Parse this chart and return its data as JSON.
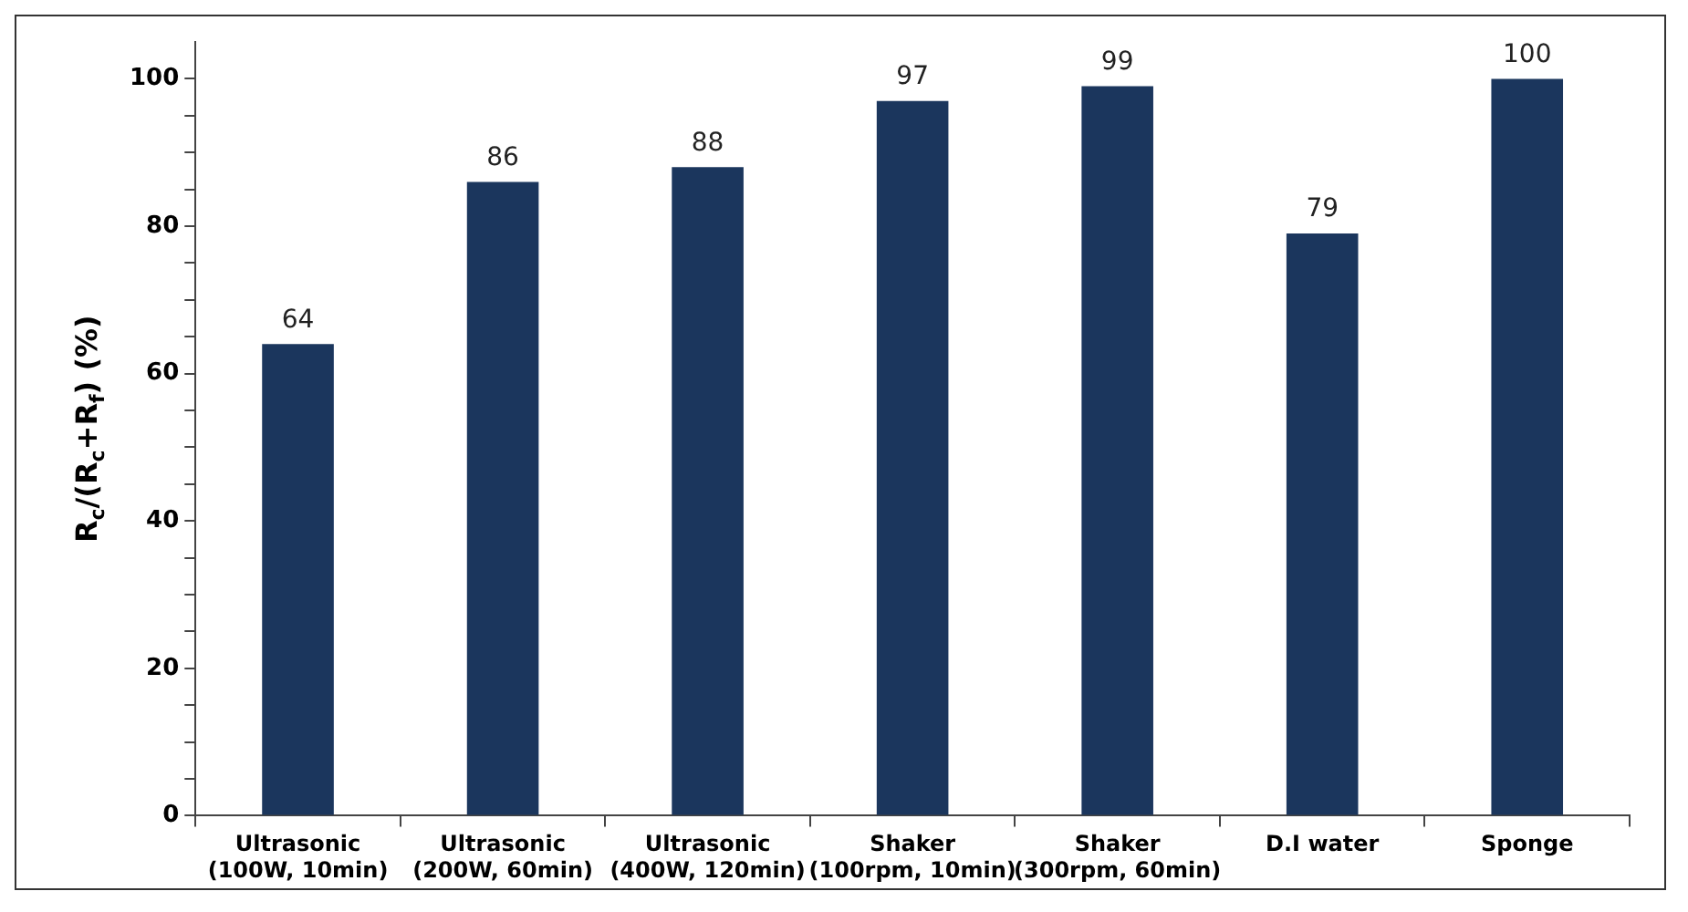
{
  "chart_data": {
    "type": "bar",
    "ylabel": "R$_{c}$/(R$_{c}$+R$_{f}$) (%)",
    "categories": [
      "Ultrasonic\n(100W, 10min)",
      "Ultrasonic\n(200W, 60min)",
      "Ultrasonic\n(400W, 120min)",
      "Shaker\n(100rpm, 10min)",
      "Shaker\n(300rpm, 60min)",
      "D.I water",
      "Sponge"
    ],
    "values": [
      64,
      86,
      88,
      97,
      99,
      79,
      100
    ],
    "color": "#1b365d",
    "ylim": [
      0,
      105
    ],
    "yticks": [
      0,
      {
        "value": 5,
        "label": null
      },
      {
        "value": 10,
        "label": null
      },
      {
        "value": 15,
        "label": null
      },
      20,
      {
        "value": 25,
        "label": null
      },
      {
        "value": 30,
        "label": null
      },
      {
        "value": 35,
        "label": null
      },
      40,
      {
        "value": 45,
        "label": null
      },
      {
        "value": 50,
        "label": null
      },
      {
        "value": 55,
        "label": null
      },
      60,
      {
        "value": 65,
        "label": null
      },
      {
        "value": 70,
        "label": null
      },
      {
        "value": 75,
        "label": null
      },
      80,
      {
        "value": 85,
        "label": null
      },
      {
        "value": 90,
        "label": null
      },
      {
        "value": 95,
        "label": null
      },
      100
    ],
    "data_labels": true,
    "grid": false
  }
}
